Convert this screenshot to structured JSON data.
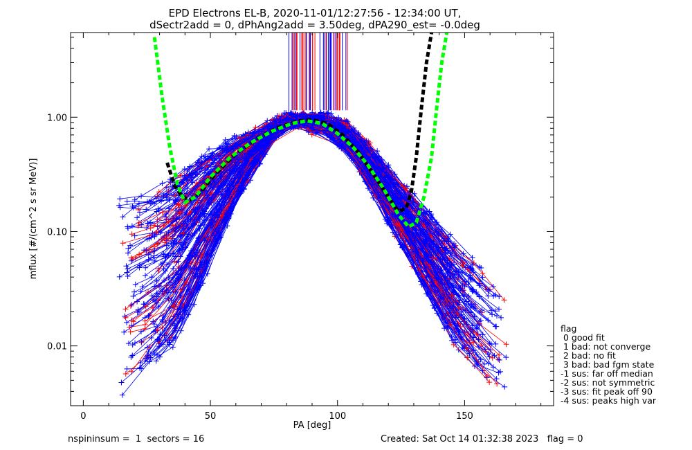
{
  "title": {
    "line1": "EPD Electrons EL-B, 2020-11-01/12:27:56 - 12:34:00 UT,",
    "line2": "dSectr2add = 0, dPhAng2add = 3.50deg, dPA290_est=  -0.0deg"
  },
  "footer": {
    "nspin": "nspininsum =  1  sectors = 16",
    "created": "Created: Sat Oct 14 01:32:38 2023   flag = 0"
  },
  "legend": {
    "title": "flag",
    "items": [
      " 0 good fit",
      " 1 bad: not converge",
      " 2 bad: no fit",
      " 3 bad: bad fgm state",
      "-1 sus: far off median",
      "-2 sus: not symmetric",
      "-3 sus: fit peak off 90",
      "-4 sus: peaks high var"
    ]
  },
  "chart_data": {
    "type": "line",
    "xlabel": "PA [deg]",
    "ylabel": "mflux [#/(cm^2 s sr MeV)]",
    "xlim": [
      -5,
      185
    ],
    "ylim": [
      0.003,
      5.5
    ],
    "yscale": "log",
    "xticks": [
      0,
      50,
      100,
      150
    ],
    "xtick_labels": [
      "0",
      "50",
      "100",
      "150"
    ],
    "yticks": [
      0.01,
      0.1,
      1.0
    ],
    "ytick_labels": [
      "0.01",
      "0.10",
      "1.00"
    ],
    "colors": {
      "blue": "#0000ff",
      "red": "#ff0000",
      "green": "#00ff00",
      "black": "#000000"
    },
    "fit_curves": [
      {
        "color": "green",
        "style": "dashed",
        "x": [
          28,
          31,
          34,
          37,
          40,
          44,
          50,
          58,
          66,
          74,
          82,
          88,
          94,
          100,
          106,
          112,
          118,
          124,
          128,
          131,
          134,
          137,
          139,
          141,
          143
        ],
        "y": [
          5.0,
          1.5,
          0.55,
          0.26,
          0.18,
          0.2,
          0.3,
          0.45,
          0.6,
          0.75,
          0.88,
          0.93,
          0.88,
          0.72,
          0.55,
          0.38,
          0.24,
          0.14,
          0.11,
          0.12,
          0.2,
          0.45,
          1.2,
          3.0,
          5.5
        ]
      },
      {
        "color": "black",
        "style": "dashed",
        "x": [
          33,
          36,
          39,
          42,
          46,
          52,
          60,
          68,
          76,
          84,
          90,
          96,
          102,
          108,
          114,
          120,
          124,
          127,
          129,
          131,
          133,
          135,
          137
        ],
        "y": [
          0.4,
          0.25,
          0.2,
          0.19,
          0.22,
          0.32,
          0.48,
          0.64,
          0.8,
          0.92,
          0.95,
          0.88,
          0.7,
          0.5,
          0.32,
          0.2,
          0.15,
          0.16,
          0.22,
          0.45,
          1.2,
          3.0,
          5.5
        ]
      }
    ],
    "spike_bands": {
      "xmin": 78,
      "xmax": 104,
      "ymin": 1.15,
      "ymax": 5.5,
      "colors": [
        "blue",
        "red"
      ]
    },
    "envelope": {
      "left_low": [
        [
          15,
          0.004
        ],
        [
          25,
          0.006
        ],
        [
          35,
          0.01
        ],
        [
          45,
          0.03
        ],
        [
          55,
          0.1
        ],
        [
          65,
          0.3
        ],
        [
          75,
          0.7
        ],
        [
          80,
          0.9
        ]
      ],
      "left_high": [
        [
          18,
          0.2
        ],
        [
          28,
          0.22
        ],
        [
          38,
          0.3
        ],
        [
          48,
          0.45
        ],
        [
          58,
          0.6
        ],
        [
          68,
          0.75
        ],
        [
          78,
          0.95
        ],
        [
          82,
          1.0
        ]
      ],
      "right_high": [
        [
          95,
          1.05
        ],
        [
          105,
          0.8
        ],
        [
          115,
          0.5
        ],
        [
          125,
          0.25
        ],
        [
          135,
          0.15
        ],
        [
          145,
          0.08
        ],
        [
          155,
          0.05
        ],
        [
          165,
          0.03
        ]
      ],
      "right_low": [
        [
          95,
          0.8
        ],
        [
          105,
          0.5
        ],
        [
          115,
          0.2
        ],
        [
          125,
          0.08
        ],
        [
          135,
          0.03
        ],
        [
          145,
          0.012
        ],
        [
          155,
          0.006
        ],
        [
          165,
          0.004
        ]
      ],
      "n_blue_lines": 150,
      "n_red_lines": 45
    }
  }
}
